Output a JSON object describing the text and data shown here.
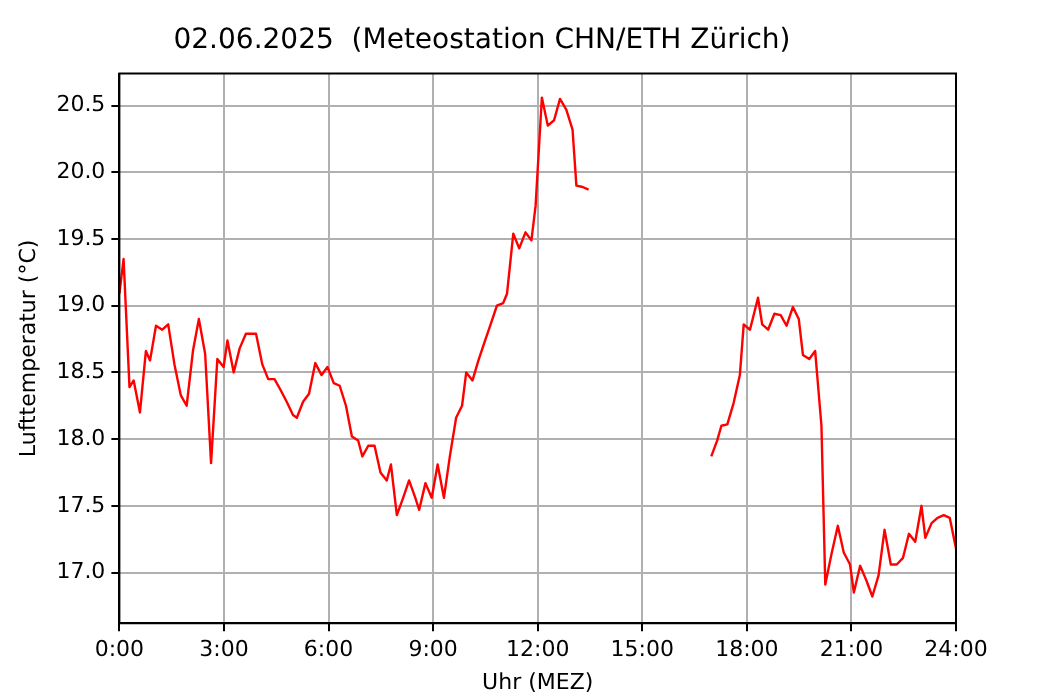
{
  "chart_data": {
    "type": "line",
    "title": "02.06.2025  (Meteostation CHN/ETH Zürich)",
    "xlabel": "Uhr (MEZ)",
    "ylabel": "Lufttemperatur (°C)",
    "xlim": [
      0,
      24
    ],
    "ylim": [
      16.62,
      20.74
    ],
    "xticks": [
      {
        "value": 0,
        "label": "0:00"
      },
      {
        "value": 3,
        "label": "3:00"
      },
      {
        "value": 6,
        "label": "6:00"
      },
      {
        "value": 9,
        "label": "9:00"
      },
      {
        "value": 12,
        "label": "12:00"
      },
      {
        "value": 15,
        "label": "15:00"
      },
      {
        "value": 18,
        "label": "18:00"
      },
      {
        "value": 21,
        "label": "21:00"
      },
      {
        "value": 24,
        "label": "24:00"
      }
    ],
    "yticks": [
      {
        "value": 17,
        "label": "17.0"
      },
      {
        "value": 17.5,
        "label": "17.5"
      },
      {
        "value": 18,
        "label": "18.0"
      },
      {
        "value": 18.5,
        "label": "18.5"
      },
      {
        "value": 19,
        "label": "19.0"
      },
      {
        "value": 19.5,
        "label": "19.5"
      },
      {
        "value": 20,
        "label": "20.0"
      },
      {
        "value": 20.5,
        "label": "20.5"
      }
    ],
    "grid": true,
    "marker": "none",
    "line_style": "solid",
    "series": [
      {
        "color": "#ff0000",
        "x": [
          0,
          0.12,
          0.29,
          0.41,
          0.59,
          0.76,
          0.88,
          1.05,
          1.23,
          1.4,
          1.58,
          1.76,
          1.93,
          2.11,
          2.28,
          2.46,
          2.63,
          2.81,
          2.99,
          3.1,
          3.28,
          3.45,
          3.63,
          3.92,
          4.1,
          4.27,
          4.45,
          4.62,
          4.8,
          4.98,
          5.09,
          5.27,
          5.44,
          5.62,
          5.8,
          5.97,
          6.15,
          6.32,
          6.5,
          6.67,
          6.85,
          6.97,
          7.14,
          7.32,
          7.49,
          7.67,
          7.79,
          7.96,
          8.14,
          8.31,
          8.49,
          8.6,
          8.78,
          8.96,
          9.13,
          9.31,
          9.48,
          9.66,
          9.83,
          9.95,
          10.13,
          10.3,
          10.48,
          10.65,
          10.83,
          11.01,
          11.12,
          11.3,
          11.47,
          11.65,
          11.82,
          11.94,
          12.12,
          12.29,
          12.47,
          12.64,
          12.82,
          13,
          13.11,
          13.29,
          13.46,
          15.2,
          16.98,
          17.15,
          17.27,
          17.44,
          17.62,
          17.8,
          17.91,
          18.09,
          18.32,
          18.44,
          18.61,
          18.79,
          18.97,
          19.14,
          19.32,
          19.49,
          19.61,
          19.79,
          19.96,
          20.14,
          20.25,
          20.43,
          20.61,
          20.78,
          20.96,
          21.07,
          21.25,
          21.43,
          21.6,
          21.78,
          21.95,
          22.13,
          22.3,
          22.48,
          22.65,
          22.83,
          23.01,
          23.12,
          23.3,
          23.47,
          23.65,
          23.82,
          24
        ],
        "values": [
          19.09,
          19.35,
          18.39,
          18.44,
          18.2,
          18.66,
          18.59,
          18.85,
          18.82,
          18.86,
          18.56,
          18.33,
          18.25,
          18.66,
          18.9,
          18.64,
          17.82,
          18.6,
          18.54,
          18.74,
          18.5,
          18.68,
          18.79,
          18.79,
          18.56,
          18.45,
          18.45,
          18.37,
          18.28,
          18.18,
          18.16,
          18.28,
          18.34,
          18.57,
          18.48,
          18.54,
          18.42,
          18.4,
          18.25,
          18.02,
          17.99,
          17.87,
          17.95,
          17.95,
          17.75,
          17.69,
          17.81,
          17.43,
          17.56,
          17.69,
          17.56,
          17.47,
          17.67,
          17.56,
          17.81,
          17.56,
          17.87,
          18.16,
          18.25,
          18.5,
          18.44,
          18.59,
          18.73,
          18.86,
          19.0,
          19.02,
          19.09,
          19.54,
          19.43,
          19.55,
          19.49,
          19.75,
          20.56,
          20.35,
          20.39,
          20.55,
          20.47,
          20.32,
          19.9,
          19.89,
          19.87,
          null,
          17.87,
          17.99,
          18.1,
          18.11,
          18.27,
          18.48,
          18.86,
          18.82,
          19.06,
          18.86,
          18.82,
          18.94,
          18.93,
          18.85,
          18.99,
          18.9,
          18.63,
          18.6,
          18.66,
          18.1,
          16.91,
          17.14,
          17.35,
          17.15,
          17.06,
          16.85,
          17.05,
          16.94,
          16.82,
          16.98,
          17.32,
          17.06,
          17.06,
          17.11,
          17.29,
          17.23,
          17.5,
          17.26,
          17.37,
          17.41,
          17.43,
          17.41,
          17.18
        ]
      }
    ]
  }
}
